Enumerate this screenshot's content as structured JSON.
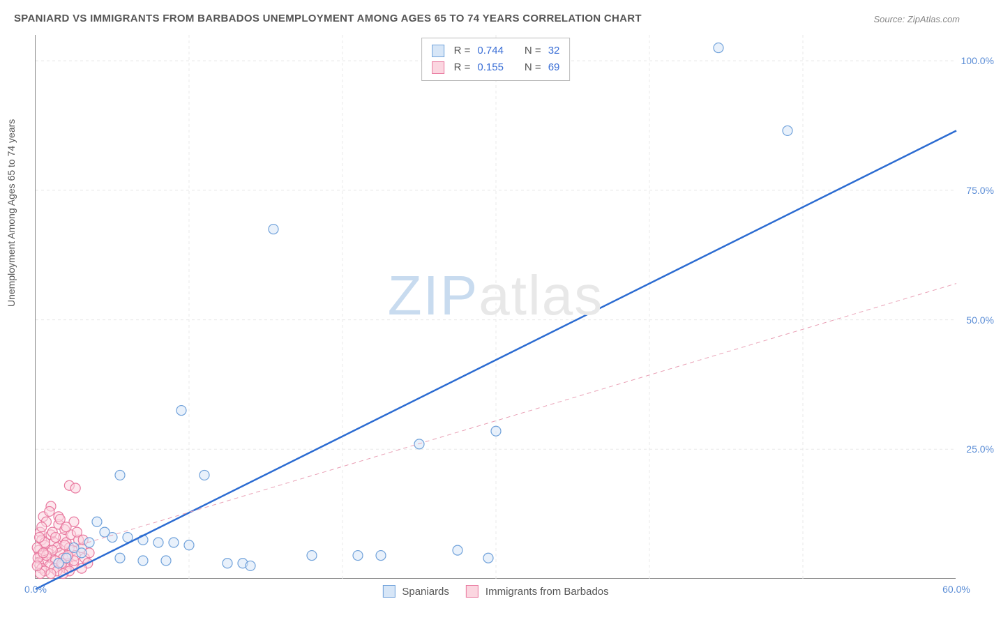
{
  "title": "SPANIARD VS IMMIGRANTS FROM BARBADOS UNEMPLOYMENT AMONG AGES 65 TO 74 YEARS CORRELATION CHART",
  "source": "Source: ZipAtlas.com",
  "ylabel": "Unemployment Among Ages 65 to 74 years",
  "watermark": {
    "bold": "ZIP",
    "light": "atlas"
  },
  "chart": {
    "type": "scatter",
    "xlim": [
      0,
      60
    ],
    "ylim": [
      0,
      105
    ],
    "xticks": [
      0,
      60
    ],
    "xtick_labels": [
      "0.0%",
      "60.0%"
    ],
    "yticks": [
      25,
      50,
      75,
      100
    ],
    "ytick_labels": [
      "25.0%",
      "50.0%",
      "75.0%",
      "100.0%"
    ],
    "grid_color": "#e8e8e8",
    "grid_dash": "4,4",
    "background_color": "#ffffff",
    "marker_radius": 7,
    "marker_stroke_width": 1.2,
    "series": [
      {
        "name": "Spaniards",
        "fill": "#d7e6f7",
        "stroke": "#6fa1da",
        "fill_opacity": 0.55,
        "points": [
          [
            44.5,
            102.5
          ],
          [
            49.0,
            86.5
          ],
          [
            15.5,
            67.5
          ],
          [
            9.5,
            32.5
          ],
          [
            30.0,
            28.5
          ],
          [
            25.0,
            26.0
          ],
          [
            11.0,
            20.0
          ],
          [
            5.5,
            20.0
          ],
          [
            4.0,
            11.0
          ],
          [
            5.0,
            8.0
          ],
          [
            6.0,
            8.0
          ],
          [
            7.0,
            7.5
          ],
          [
            8.0,
            7.0
          ],
          [
            9.0,
            7.0
          ],
          [
            3.0,
            5.0
          ],
          [
            5.5,
            4.0
          ],
          [
            7.0,
            3.5
          ],
          [
            8.5,
            3.5
          ],
          [
            12.5,
            3.0
          ],
          [
            10.0,
            6.5
          ],
          [
            18.0,
            4.5
          ],
          [
            21.0,
            4.5
          ],
          [
            22.5,
            4.5
          ],
          [
            27.5,
            5.5
          ],
          [
            2.0,
            4.0
          ],
          [
            2.5,
            6.0
          ],
          [
            3.5,
            7.0
          ],
          [
            4.5,
            9.0
          ],
          [
            1.5,
            3.0
          ],
          [
            13.5,
            3.0
          ],
          [
            29.5,
            4.0
          ],
          [
            14.0,
            2.5
          ]
        ],
        "trend": {
          "x1": 0,
          "y1": -2,
          "x2": 60,
          "y2": 86.5,
          "color": "#2b6bd1",
          "width": 2.5,
          "dash": "none"
        }
      },
      {
        "name": "Immigrants from Barbados",
        "fill": "#fbd6e0",
        "stroke": "#e97aa0",
        "fill_opacity": 0.55,
        "points": [
          [
            2.2,
            18.0
          ],
          [
            2.6,
            17.5
          ],
          [
            1.0,
            14.0
          ],
          [
            0.5,
            12.0
          ],
          [
            1.5,
            10.5
          ],
          [
            2.5,
            11.0
          ],
          [
            0.3,
            9.0
          ],
          [
            1.0,
            8.5
          ],
          [
            1.8,
            8.0
          ],
          [
            0.4,
            7.5
          ],
          [
            1.2,
            7.0
          ],
          [
            2.0,
            7.0
          ],
          [
            0.6,
            6.5
          ],
          [
            1.4,
            6.0
          ],
          [
            2.2,
            6.0
          ],
          [
            0.2,
            5.5
          ],
          [
            0.8,
            5.0
          ],
          [
            1.6,
            5.0
          ],
          [
            2.4,
            5.5
          ],
          [
            0.3,
            4.5
          ],
          [
            1.0,
            4.0
          ],
          [
            1.8,
            4.0
          ],
          [
            2.6,
            4.5
          ],
          [
            0.5,
            3.5
          ],
          [
            1.3,
            3.5
          ],
          [
            2.1,
            3.0
          ],
          [
            0.2,
            3.0
          ],
          [
            0.9,
            2.5
          ],
          [
            1.7,
            2.5
          ],
          [
            2.5,
            2.5
          ],
          [
            0.4,
            2.0
          ],
          [
            1.2,
            2.0
          ],
          [
            2.0,
            2.0
          ],
          [
            0.6,
            1.5
          ],
          [
            1.4,
            1.5
          ],
          [
            2.2,
            1.5
          ],
          [
            0.3,
            1.0
          ],
          [
            1.0,
            1.0
          ],
          [
            1.8,
            1.0
          ],
          [
            0.6,
            7.0
          ],
          [
            1.1,
            9.0
          ],
          [
            1.9,
            9.5
          ],
          [
            0.7,
            11.0
          ],
          [
            2.3,
            8.5
          ],
          [
            3.0,
            6.0
          ],
          [
            3.2,
            4.0
          ],
          [
            3.4,
            3.0
          ],
          [
            3.0,
            2.0
          ],
          [
            3.5,
            5.0
          ],
          [
            0.1,
            6.0
          ],
          [
            0.15,
            4.0
          ],
          [
            0.1,
            2.5
          ],
          [
            2.8,
            7.5
          ],
          [
            1.5,
            12.0
          ],
          [
            0.9,
            13.0
          ],
          [
            2.0,
            10.0
          ],
          [
            0.4,
            10.0
          ],
          [
            1.6,
            11.5
          ],
          [
            2.7,
            9.0
          ],
          [
            3.1,
            7.5
          ],
          [
            0.25,
            8.0
          ],
          [
            1.1,
            5.5
          ],
          [
            1.9,
            6.5
          ],
          [
            2.5,
            3.5
          ],
          [
            0.7,
            4.5
          ],
          [
            1.3,
            8.0
          ],
          [
            2.1,
            4.5
          ],
          [
            0.5,
            5.0
          ],
          [
            1.7,
            3.0
          ]
        ],
        "trend": {
          "x1": 0,
          "y1": 4,
          "x2": 60,
          "y2": 57,
          "color": "#e9a0b5",
          "width": 1,
          "dash": "6,5"
        }
      }
    ]
  },
  "stats": [
    {
      "swatch_fill": "#d7e6f7",
      "swatch_stroke": "#6fa1da",
      "r_label": "R =",
      "r": "0.744",
      "n_label": "N =",
      "n": "32"
    },
    {
      "swatch_fill": "#fbd6e0",
      "swatch_stroke": "#e97aa0",
      "r_label": "R =",
      "r": "0.155",
      "n_label": "N =",
      "n": "69"
    }
  ],
  "legend": [
    {
      "swatch_fill": "#d7e6f7",
      "swatch_stroke": "#6fa1da",
      "label": "Spaniards"
    },
    {
      "swatch_fill": "#fbd6e0",
      "swatch_stroke": "#e97aa0",
      "label": "Immigrants from Barbados"
    }
  ]
}
